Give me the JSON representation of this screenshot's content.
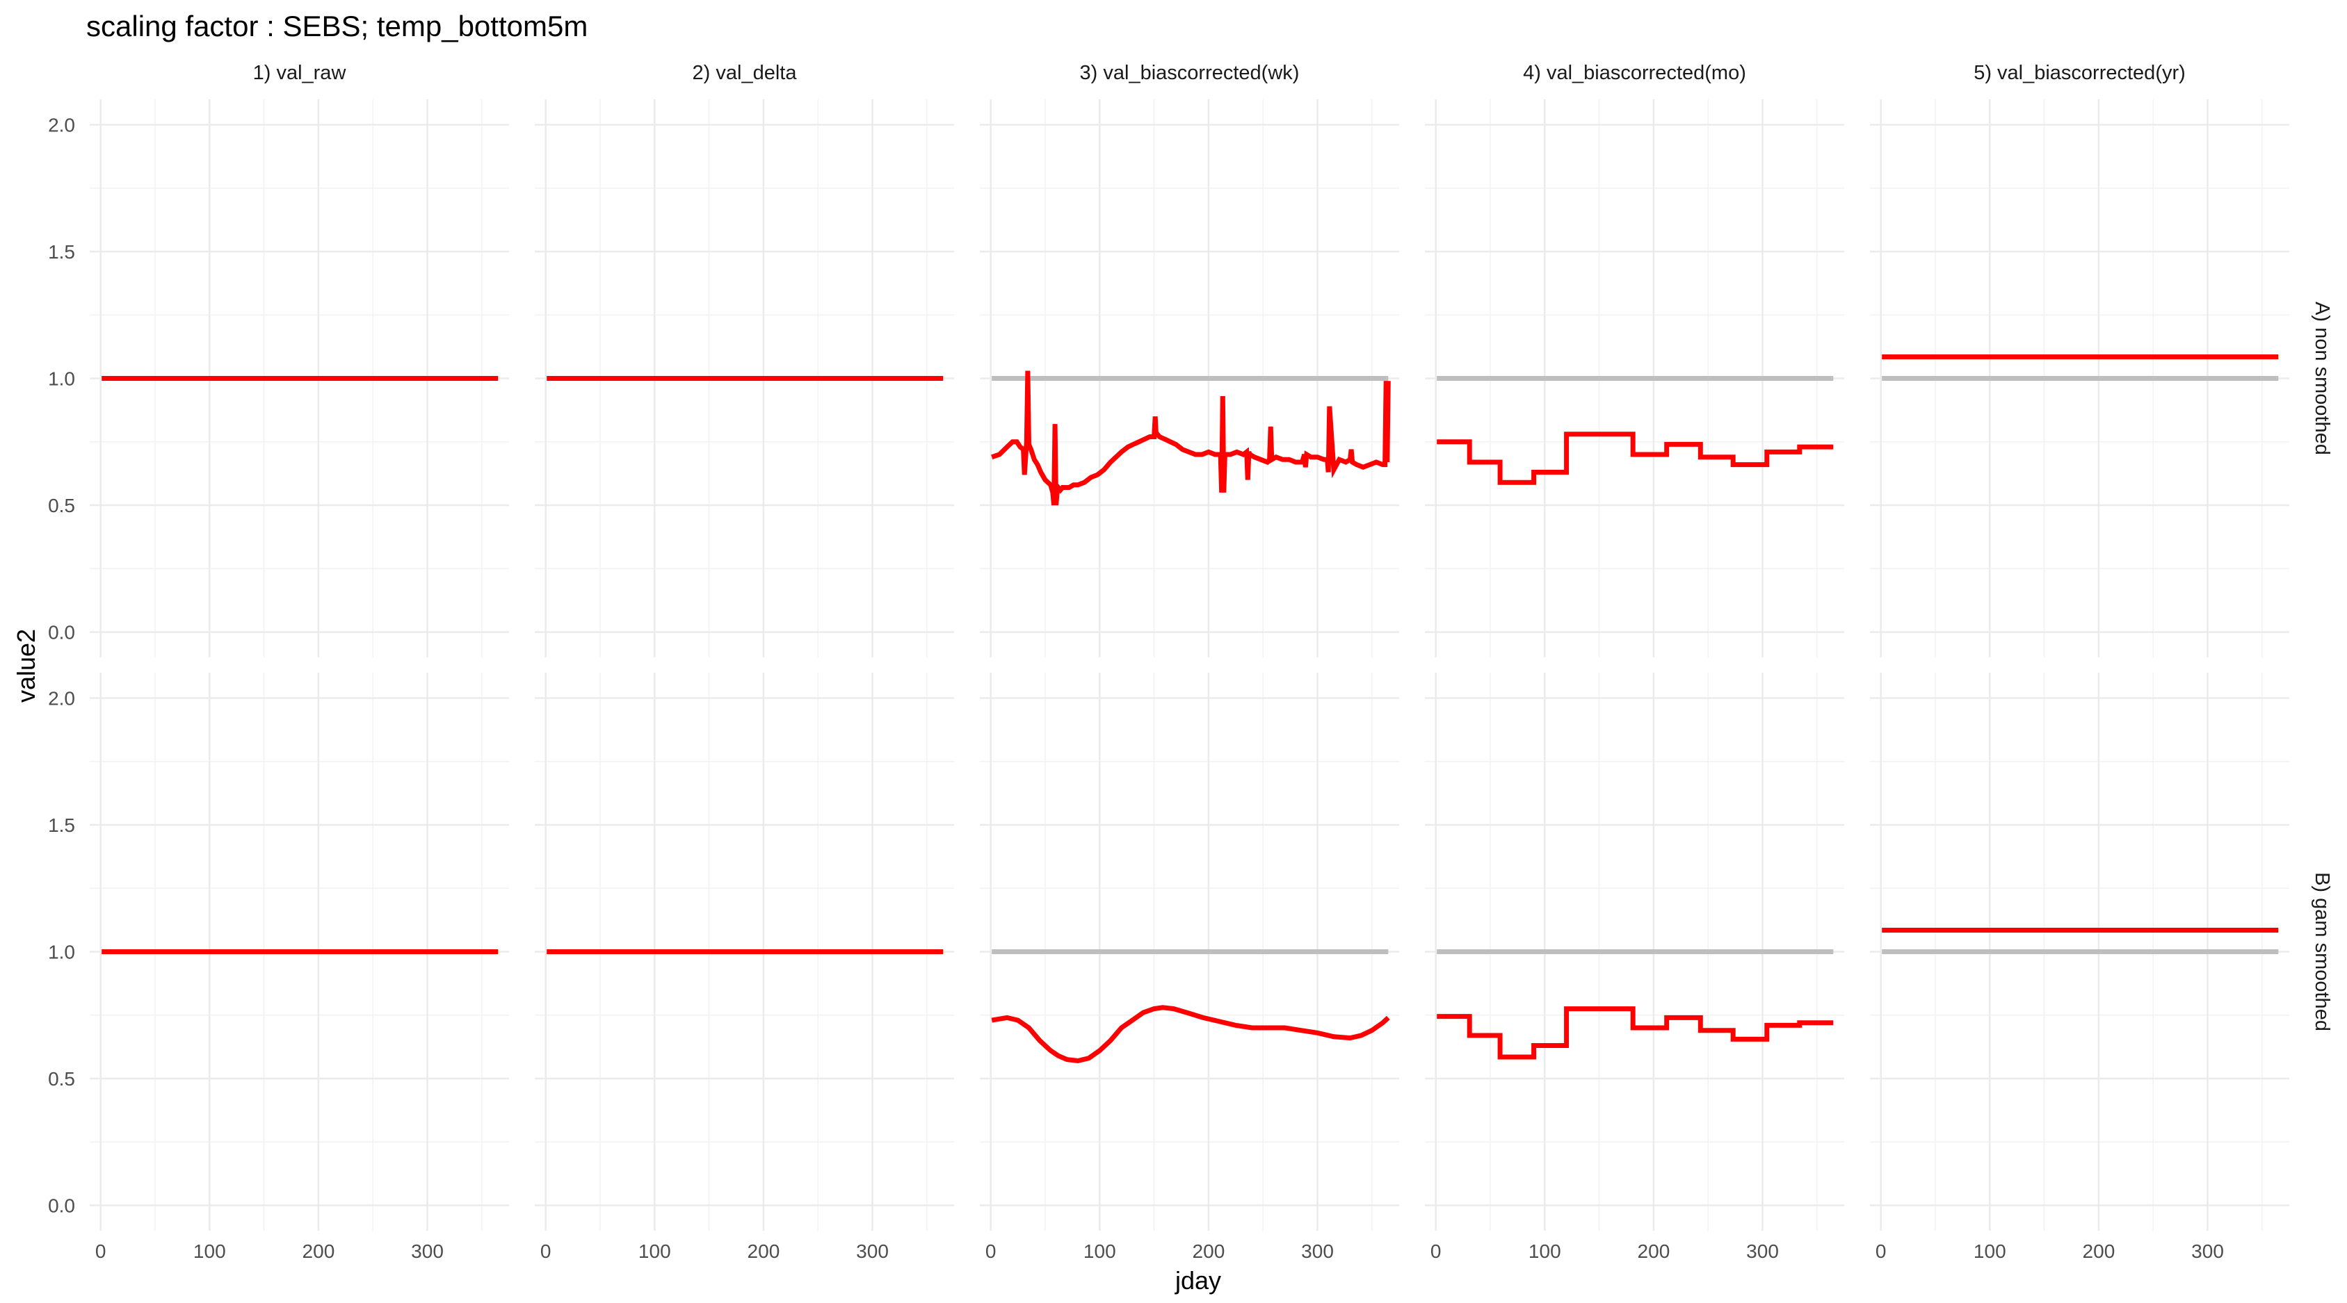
{
  "chart_data": {
    "type": "line",
    "title": "scaling factor : SEBS; temp_bottom5m",
    "xlabel": "jday",
    "ylabel": "value2",
    "xlim": [
      -10,
      375
    ],
    "ylim": [
      -0.1,
      2.1
    ],
    "x_ticks": [
      0,
      100,
      200,
      300
    ],
    "y_ticks": [
      0.0,
      0.5,
      1.0,
      1.5,
      2.0
    ],
    "y_tick_labels": [
      "0.0",
      "0.5",
      "1.0",
      "1.5",
      "2.0"
    ],
    "grid": true,
    "columns": [
      "1) val_raw",
      "2) val_delta",
      "3) val_biascorrected(wk)",
      "4) val_biascorrected(mo)",
      "5) val_biascorrected(yr)"
    ],
    "rows": [
      "A) non smoothed",
      "B) gam smoothed"
    ],
    "colors": {
      "main": "#ff0000",
      "reference": "#bebebe"
    },
    "panels": [
      {
        "row": 0,
        "col": 0,
        "series": [
          {
            "color": "red",
            "x": [
              1,
              365
            ],
            "y": [
              1.0,
              1.0
            ]
          }
        ]
      },
      {
        "row": 0,
        "col": 1,
        "series": [
          {
            "color": "red",
            "x": [
              1,
              365
            ],
            "y": [
              1.0,
              1.0
            ]
          }
        ]
      },
      {
        "row": 0,
        "col": 2,
        "series": [
          {
            "color": "grey",
            "x": [
              1,
              365
            ],
            "y": [
              1.0,
              1.0
            ]
          },
          {
            "color": "red",
            "x": [
              1,
              8,
              15,
              20,
              24,
              27,
              30,
              31,
              33,
              34,
              35,
              37,
              40,
              43,
              46,
              50,
              55,
              57,
              58,
              59,
              60,
              61,
              62,
              64,
              66,
              68,
              72,
              76,
              80,
              86,
              92,
              98,
              104,
              110,
              115,
              120,
              126,
              131,
              136,
              141,
              146,
              150,
              151,
              152,
              153,
              155,
              160,
              165,
              170,
              176,
              182,
              188,
              194,
              200,
              206,
              211,
              212,
              213,
              214,
              215,
              220,
              226,
              232,
              235,
              236,
              237,
              238,
              242,
              248,
              254,
              256,
              257,
              258,
              262,
              268,
              274,
              280,
              286,
              288,
              289,
              290,
              294,
              300,
              306,
              309,
              310,
              311,
              315,
              320,
              326,
              330,
              331,
              332,
              336,
              342,
              348,
              354,
              360,
              362,
              363,
              364,
              365
            ],
            "y": [
              0.69,
              0.7,
              0.73,
              0.75,
              0.75,
              0.73,
              0.72,
              0.62,
              0.75,
              1.03,
              0.74,
              0.72,
              0.68,
              0.66,
              0.63,
              0.6,
              0.58,
              0.55,
              0.5,
              0.82,
              0.5,
              0.55,
              0.57,
              0.56,
              0.57,
              0.57,
              0.57,
              0.58,
              0.58,
              0.59,
              0.61,
              0.62,
              0.64,
              0.67,
              0.69,
              0.71,
              0.73,
              0.74,
              0.75,
              0.76,
              0.77,
              0.77,
              0.85,
              0.77,
              0.78,
              0.77,
              0.76,
              0.75,
              0.74,
              0.72,
              0.71,
              0.7,
              0.7,
              0.71,
              0.7,
              0.7,
              0.55,
              0.93,
              0.55,
              0.7,
              0.7,
              0.71,
              0.7,
              0.71,
              0.6,
              0.71,
              0.7,
              0.69,
              0.68,
              0.67,
              0.68,
              0.81,
              0.68,
              0.69,
              0.68,
              0.68,
              0.67,
              0.67,
              0.7,
              0.65,
              0.7,
              0.69,
              0.69,
              0.68,
              0.68,
              0.63,
              0.89,
              0.64,
              0.68,
              0.67,
              0.68,
              0.72,
              0.67,
              0.66,
              0.65,
              0.66,
              0.67,
              0.66,
              0.66,
              0.99,
              0.67,
              0.99
            ]
          }
        ]
      },
      {
        "row": 0,
        "col": 3,
        "series": [
          {
            "color": "grey",
            "x": [
              1,
              365
            ],
            "y": [
              1.0,
              1.0
            ]
          },
          {
            "color": "red",
            "x": [
              1,
              31,
              31,
              59,
              59,
              90,
              90,
              120,
              120,
              181,
              181,
              212,
              212,
              243,
              243,
              273,
              273,
              304,
              304,
              334,
              334,
              365
            ],
            "y": [
              0.75,
              0.75,
              0.67,
              0.67,
              0.59,
              0.59,
              0.63,
              0.63,
              0.78,
              0.78,
              0.7,
              0.7,
              0.74,
              0.74,
              0.69,
              0.69,
              0.66,
              0.66,
              0.71,
              0.71,
              0.73,
              0.73
            ]
          }
        ]
      },
      {
        "row": 0,
        "col": 4,
        "series": [
          {
            "color": "grey",
            "x": [
              1,
              365
            ],
            "y": [
              1.0,
              1.0
            ]
          },
          {
            "color": "red",
            "x": [
              1,
              365
            ],
            "y": [
              1.085,
              1.085
            ]
          }
        ]
      },
      {
        "row": 1,
        "col": 0,
        "series": [
          {
            "color": "red",
            "x": [
              1,
              365
            ],
            "y": [
              1.0,
              1.0
            ]
          }
        ]
      },
      {
        "row": 1,
        "col": 1,
        "series": [
          {
            "color": "red",
            "x": [
              1,
              365
            ],
            "y": [
              1.0,
              1.0
            ]
          }
        ]
      },
      {
        "row": 1,
        "col": 2,
        "series": [
          {
            "color": "grey",
            "x": [
              1,
              365
            ],
            "y": [
              1.0,
              1.0
            ]
          },
          {
            "color": "red",
            "x": [
              1,
              15,
              25,
              35,
              45,
              55,
              62,
              70,
              80,
              90,
              100,
              110,
              120,
              130,
              140,
              150,
              158,
              168,
              180,
              195,
              210,
              225,
              240,
              255,
              270,
              285,
              300,
              315,
              330,
              340,
              350,
              360,
              365
            ],
            "y": [
              0.73,
              0.74,
              0.73,
              0.7,
              0.65,
              0.61,
              0.59,
              0.575,
              0.57,
              0.58,
              0.61,
              0.65,
              0.7,
              0.73,
              0.76,
              0.775,
              0.78,
              0.775,
              0.76,
              0.74,
              0.725,
              0.71,
              0.7,
              0.7,
              0.7,
              0.69,
              0.68,
              0.665,
              0.66,
              0.67,
              0.69,
              0.72,
              0.74
            ]
          }
        ]
      },
      {
        "row": 1,
        "col": 3,
        "series": [
          {
            "color": "grey",
            "x": [
              1,
              365
            ],
            "y": [
              1.0,
              1.0
            ]
          },
          {
            "color": "red",
            "x": [
              1,
              31,
              31,
              59,
              59,
              90,
              90,
              120,
              120,
              181,
              181,
              212,
              212,
              243,
              243,
              273,
              273,
              304,
              304,
              334,
              334,
              365
            ],
            "y": [
              0.745,
              0.745,
              0.67,
              0.67,
              0.585,
              0.585,
              0.63,
              0.63,
              0.775,
              0.775,
              0.7,
              0.7,
              0.74,
              0.74,
              0.69,
              0.69,
              0.655,
              0.655,
              0.71,
              0.71,
              0.72,
              0.72
            ]
          }
        ]
      },
      {
        "row": 1,
        "col": 4,
        "series": [
          {
            "color": "grey",
            "x": [
              1,
              365
            ],
            "y": [
              1.0,
              1.0
            ]
          },
          {
            "color": "red",
            "x": [
              1,
              365
            ],
            "y": [
              1.085,
              1.085
            ]
          }
        ]
      }
    ]
  }
}
